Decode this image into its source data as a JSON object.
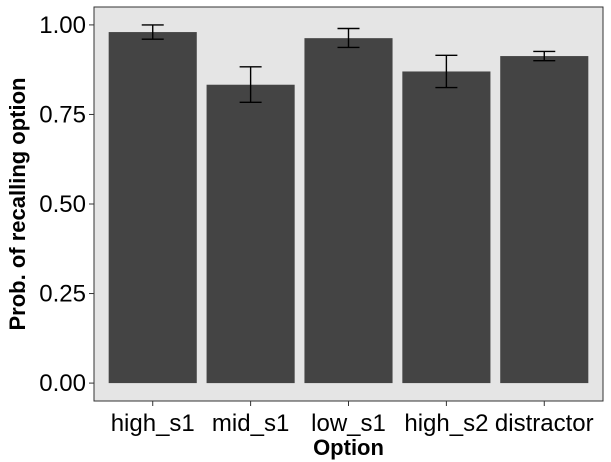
{
  "chart_data": {
    "type": "bar",
    "title": "",
    "xlabel": "Option",
    "ylabel": "Prob. of recalling option",
    "categories": [
      "high_s1",
      "mid_s1",
      "low_s1",
      "high_s2",
      "distractor"
    ],
    "values": [
      0.98,
      0.833,
      0.963,
      0.87,
      0.913
    ],
    "error_bars": [
      {
        "low": 0.96,
        "high": 1.0
      },
      {
        "low": 0.784,
        "high": 0.883
      },
      {
        "low": 0.937,
        "high": 0.99
      },
      {
        "low": 0.825,
        "high": 0.915
      },
      {
        "low": 0.9,
        "high": 0.926
      }
    ],
    "ylim": [
      -0.05,
      1.05
    ],
    "yticks": [
      0.0,
      0.25,
      0.5,
      0.75,
      1.0
    ],
    "ytick_labels": [
      "0.00",
      "0.25",
      "0.50",
      "0.75",
      "1.00"
    ],
    "grid": false,
    "legend": "none",
    "colors": {
      "panel_background": "#e5e5e5",
      "bar_fill": "#444444",
      "error_bar": "#000000",
      "axis_line": "#333333",
      "text": "#000000"
    }
  }
}
